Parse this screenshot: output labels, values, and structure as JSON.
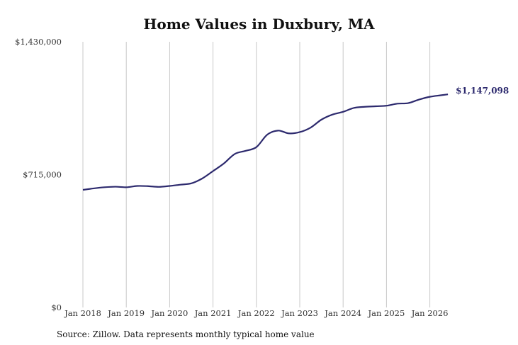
{
  "chart_data": {
    "type": "line",
    "title": "Home Values in Duxbury, MA",
    "xlabel": "",
    "ylabel": "",
    "x_ticks": [
      "Jan 2018",
      "Jan 2019",
      "Jan 2020",
      "Jan 2021",
      "Jan 2022",
      "Jan 2023",
      "Jan 2024",
      "Jan 2025",
      "Jan 2026"
    ],
    "y_ticks": [
      "$0",
      "$715,000",
      "$1,430,000"
    ],
    "y_tick_values": [
      0,
      715000,
      1430000
    ],
    "ylim": [
      0,
      1430000
    ],
    "xlim": [
      "2018-01",
      "2026-06"
    ],
    "grid": "vertical",
    "line_color": "#2d2a6e",
    "series": [
      {
        "points": [
          [
            "2018-01",
            633000
          ],
          [
            "2018-04",
            641000
          ],
          [
            "2018-07",
            647000
          ],
          [
            "2018-10",
            650000
          ],
          [
            "2019-01",
            647000
          ],
          [
            "2019-04",
            654000
          ],
          [
            "2019-07",
            653000
          ],
          [
            "2019-10",
            649000
          ],
          [
            "2020-01",
            654000
          ],
          [
            "2020-04",
            661000
          ],
          [
            "2020-07",
            668000
          ],
          [
            "2020-10",
            694000
          ],
          [
            "2021-01",
            734000
          ],
          [
            "2021-04",
            775000
          ],
          [
            "2021-07",
            826000
          ],
          [
            "2021-10",
            843000
          ],
          [
            "2022-01",
            863000
          ],
          [
            "2022-04",
            930000
          ],
          [
            "2022-07",
            952000
          ],
          [
            "2022-10",
            937000
          ],
          [
            "2023-01",
            944000
          ],
          [
            "2023-04",
            968000
          ],
          [
            "2023-07",
            1011000
          ],
          [
            "2023-10",
            1038000
          ],
          [
            "2024-01",
            1053000
          ],
          [
            "2024-04",
            1074000
          ],
          [
            "2024-07",
            1080000
          ],
          [
            "2024-10",
            1083000
          ],
          [
            "2025-01",
            1086000
          ],
          [
            "2025-04",
            1097000
          ],
          [
            "2025-07",
            1100000
          ],
          [
            "2025-10",
            1119000
          ],
          [
            "2026-01",
            1134000
          ],
          [
            "2026-04",
            1142000
          ],
          [
            "2026-06",
            1147098
          ]
        ]
      }
    ],
    "end_label": "$1,147,098"
  },
  "source": "Source: Zillow. Data represents monthly typical home value"
}
